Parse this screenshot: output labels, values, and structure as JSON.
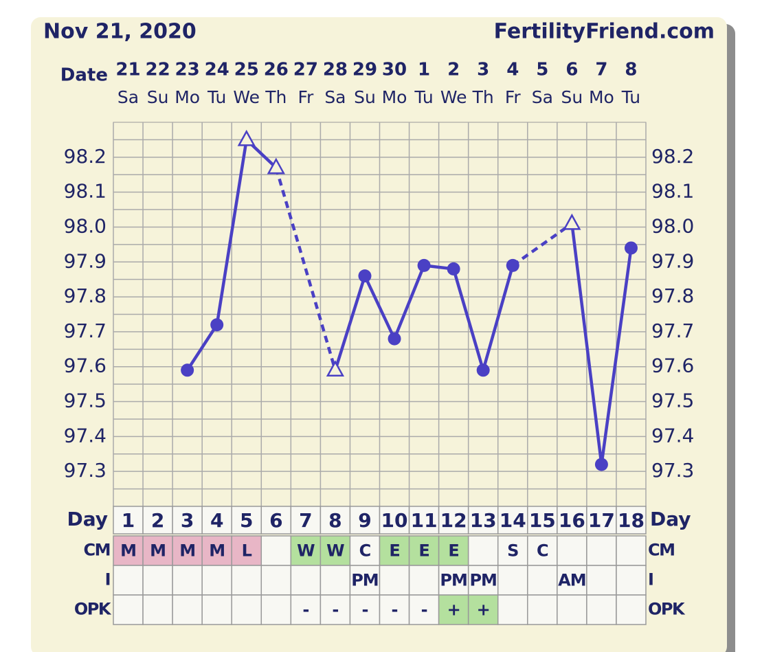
{
  "chart_data": {
    "type": "line",
    "title": "Nov 21, 2020",
    "site": "FertilityFriend.com",
    "date_label": "Date",
    "dates": [
      "21",
      "22",
      "23",
      "24",
      "25",
      "26",
      "27",
      "28",
      "29",
      "30",
      "1",
      "2",
      "3",
      "4",
      "5",
      "6",
      "7",
      "8"
    ],
    "weekdays": [
      "Sa",
      "Su",
      "Mo",
      "Tu",
      "We",
      "Th",
      "Fr",
      "Sa",
      "Su",
      "Mo",
      "Tu",
      "We",
      "Th",
      "Fr",
      "Sa",
      "Su",
      "Mo",
      "Tu"
    ],
    "day_label": "Day",
    "days": [
      1,
      2,
      3,
      4,
      5,
      6,
      7,
      8,
      9,
      10,
      11,
      12,
      13,
      14,
      15,
      16,
      17,
      18
    ],
    "color": "#4a40c4",
    "values": [
      null,
      null,
      97.59,
      97.72,
      98.25,
      98.17,
      null,
      97.59,
      97.86,
      97.68,
      97.89,
      97.88,
      97.59,
      97.89,
      null,
      98.01,
      97.32,
      97.94
    ],
    "markers": [
      null,
      null,
      "circle",
      "circle",
      "triangle",
      "triangle",
      null,
      "triangle",
      "circle",
      "circle",
      "circle",
      "circle",
      "circle",
      "circle",
      null,
      "triangle",
      "circle",
      "circle"
    ],
    "ylim": [
      97.2,
      98.3
    ],
    "yticks": [
      {
        "value": 97.3,
        "label": "97.3"
      },
      {
        "value": 97.4,
        "label": "97.4"
      },
      {
        "value": 97.5,
        "label": "97.5"
      },
      {
        "value": 97.6,
        "label": "97.6"
      },
      {
        "value": 97.7,
        "label": "97.7"
      },
      {
        "value": 97.8,
        "label": "97.8"
      },
      {
        "value": 97.9,
        "label": "97.9"
      },
      {
        "value": 98.0,
        "label": "98.0"
      },
      {
        "value": 98.1,
        "label": "98.1"
      },
      {
        "value": 98.2,
        "label": "98.2"
      }
    ],
    "grid": true,
    "rows": [
      {
        "label": "CM",
        "cells": [
          "M",
          "M",
          "M",
          "M",
          "L",
          null,
          "W",
          "W",
          "C",
          "E",
          "E",
          "E",
          null,
          "S",
          "C",
          null,
          null,
          null
        ],
        "colors": [
          "#e8b6c6",
          "#e8b6c6",
          "#e8b6c6",
          "#e8b6c6",
          "#e8b6c6",
          null,
          "#b4e09e",
          "#b4e09e",
          null,
          "#b4e09e",
          "#b4e09e",
          "#b4e09e",
          null,
          null,
          null,
          null,
          null,
          null
        ]
      },
      {
        "label": "I",
        "cells": [
          null,
          null,
          null,
          null,
          null,
          null,
          null,
          null,
          "PM",
          null,
          null,
          "PM",
          "PM",
          null,
          null,
          "AM",
          null,
          null
        ],
        "colors": [
          null,
          null,
          null,
          null,
          null,
          null,
          null,
          null,
          null,
          null,
          null,
          null,
          null,
          null,
          null,
          null,
          null,
          null
        ]
      },
      {
        "label": "OPK",
        "cells": [
          null,
          null,
          null,
          null,
          null,
          null,
          "-",
          "-",
          "-",
          "-",
          "-",
          "+",
          "+",
          null,
          null,
          null,
          null,
          null
        ],
        "colors": [
          null,
          null,
          null,
          null,
          null,
          null,
          null,
          null,
          null,
          null,
          null,
          "#b4e09e",
          "#b4e09e",
          null,
          null,
          null,
          null,
          null
        ]
      }
    ]
  }
}
